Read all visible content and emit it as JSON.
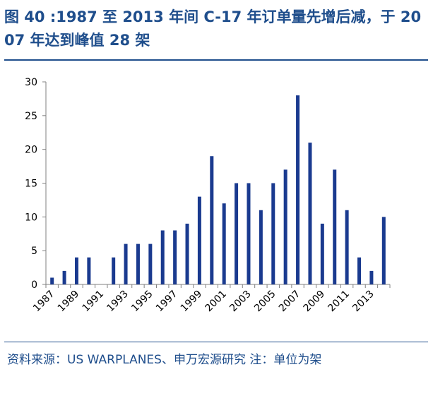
{
  "title": "图 40 :1987 至 2013 年间 C-17 年订单量先增后减，于 2007 年达到峰值 28 架",
  "source": "资料来源：US WARPLANES、申万宏源研究 注：单位为架",
  "colors": {
    "title": "#1f4e8c",
    "bar": "#1a3a8f",
    "axis": "#808080"
  },
  "chart_data": {
    "type": "bar",
    "title": "1987 至 2013 年间 C-17 年订单量先增后减，于 2007 年达到峰值 28 架",
    "xlabel": "",
    "ylabel": "",
    "ylim": [
      0,
      30
    ],
    "yticks": [
      0,
      5,
      10,
      15,
      20,
      25,
      30
    ],
    "categories": [
      "1987",
      "1988",
      "1989",
      "1990",
      "1991",
      "1992",
      "1993",
      "1994",
      "1995",
      "1996",
      "1997",
      "1998",
      "1999",
      "2000",
      "2001",
      "2002",
      "2003",
      "2004",
      "2005",
      "2006",
      "2007",
      "2008",
      "2009",
      "2010",
      "2011",
      "2012",
      "2013",
      "2014"
    ],
    "values": [
      1,
      2,
      4,
      4,
      0,
      4,
      6,
      6,
      6,
      8,
      8,
      9,
      13,
      19,
      12,
      15,
      15,
      11,
      15,
      17,
      28,
      21,
      9,
      17,
      11,
      4,
      2,
      10
    ],
    "xtick_labels": [
      "1987",
      "1989",
      "1991",
      "1993",
      "1995",
      "1997",
      "1999",
      "2001",
      "2003",
      "2005",
      "2007",
      "2009",
      "2011",
      "2013"
    ],
    "unit": "架",
    "grid": false,
    "legend": "none"
  }
}
